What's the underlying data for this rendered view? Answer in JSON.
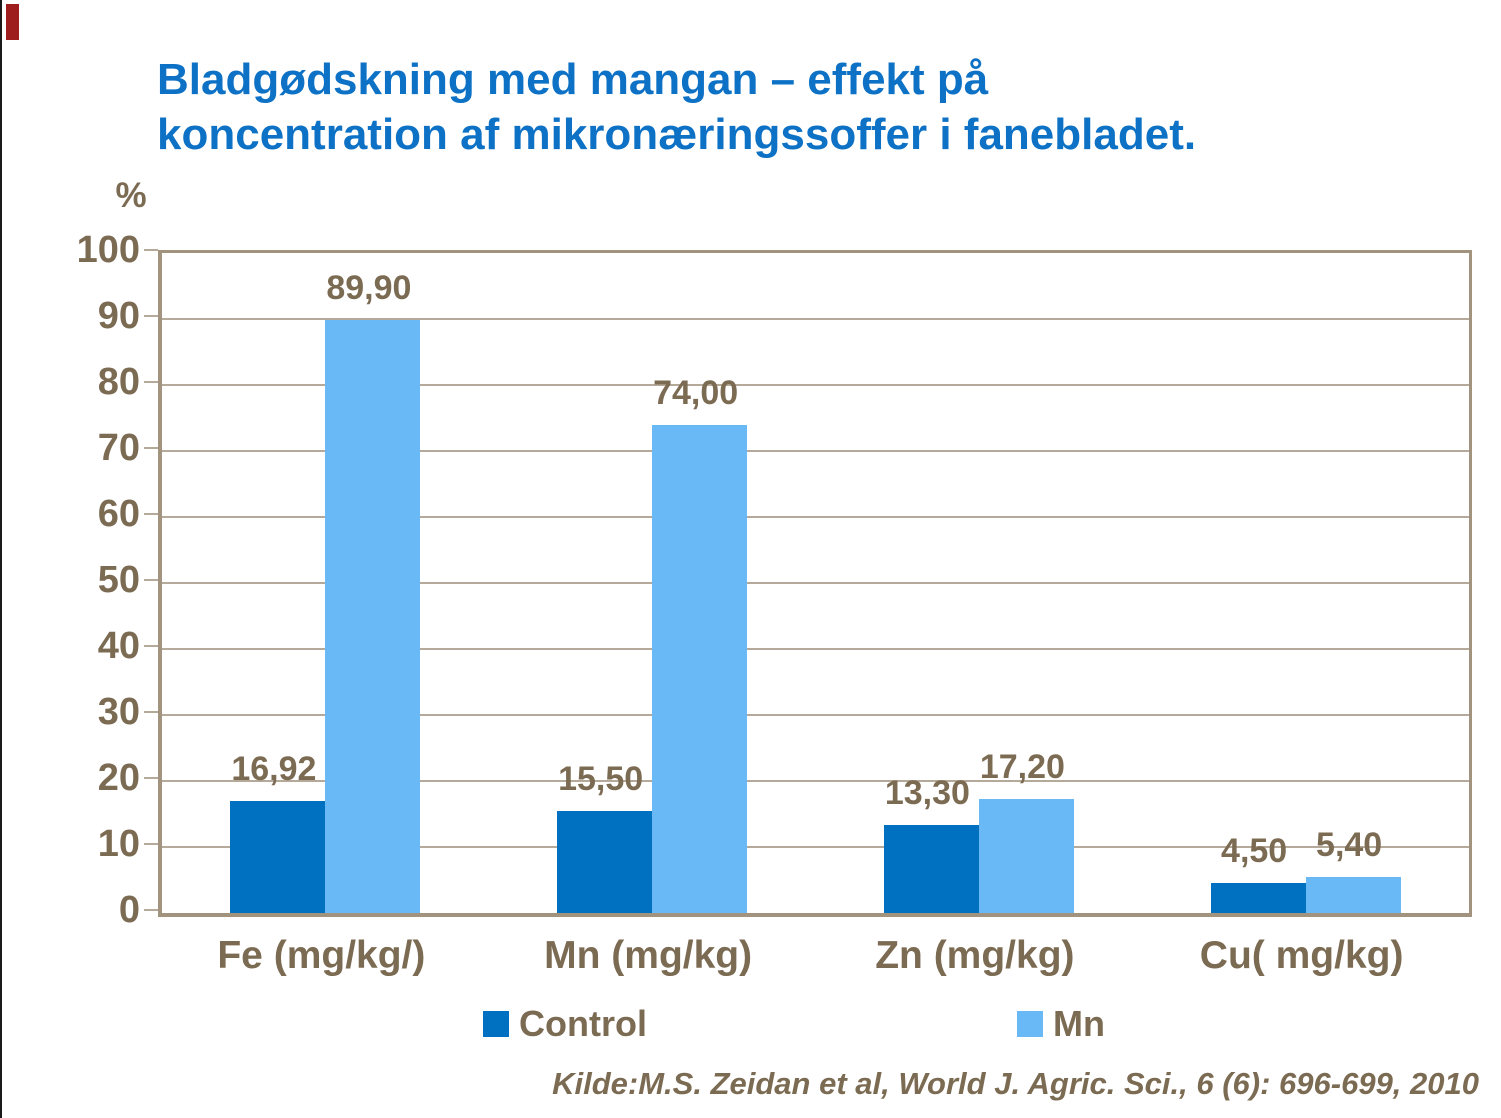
{
  "slide": {
    "title_line1": "Bladgødskning med mangan – effekt på",
    "title_line2": "koncentration af mikronæringssoffer i fanebladet.",
    "source": "Kilde:M.S. Zeidan et al, World J. Agric. Sci., 6 (6): 696-699, 2010"
  },
  "colors": {
    "title": "#0D71C5",
    "text": "#7C6B53",
    "gridline": "#B5A999",
    "frame": "#A2937F",
    "corner_marker": "#9E1E1E",
    "left_edge": "#1A1A1A"
  },
  "chart_data": {
    "type": "bar",
    "title": "Bladgødskning med mangan – effekt på koncentration af mikronæringssoffer i fanebladet.",
    "ylabel": "%",
    "xlabel": "",
    "ylim": [
      0,
      100
    ],
    "ytick_step": 10,
    "ytick_labels": [
      "0",
      "10",
      "20",
      "30",
      "40",
      "50",
      "60",
      "70",
      "80",
      "90",
      "100"
    ],
    "grid": true,
    "legend_position": "bottom",
    "categories": [
      "Fe (mg/kg/)",
      "Mn (mg/kg)",
      "Zn (mg/kg)",
      "Cu( mg/kg)"
    ],
    "series": [
      {
        "name": "Control",
        "color": "#0070C0",
        "values": [
          16.92,
          15.5,
          13.3,
          4.5
        ],
        "labels": [
          "16,92",
          "15,50",
          "13,30",
          "4,50"
        ]
      },
      {
        "name": "Mn",
        "color": "#68B9F5",
        "values": [
          89.9,
          74.0,
          17.2,
          5.4
        ],
        "labels": [
          "89,90",
          "74,00",
          "17,20",
          "5,40"
        ]
      }
    ],
    "source": "Kilde:M.S. Zeidan et al, World J. Agric. Sci., 6 (6): 696-699, 2010"
  }
}
